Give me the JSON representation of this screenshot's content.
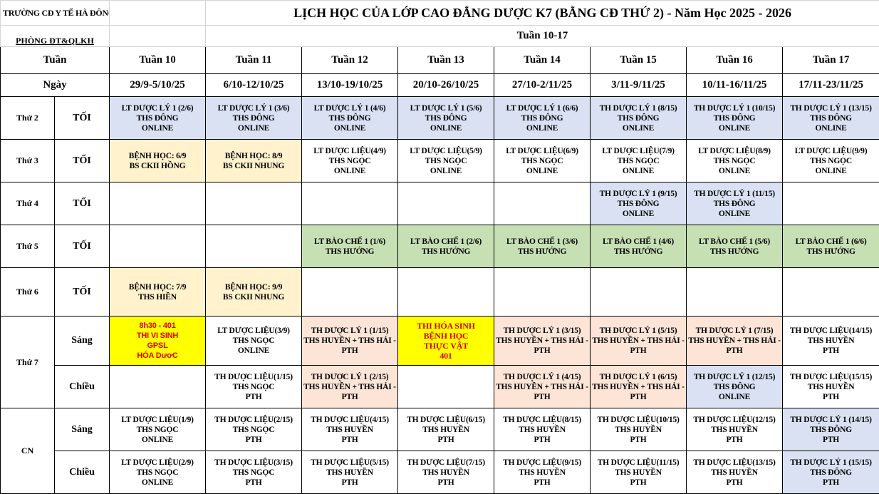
{
  "header": {
    "school": "TRƯỜNG CĐ  Y TẾ HÀ ĐÔNG",
    "title": "LỊCH HỌC CỦA LỚP CAO ĐẲNG DƯỢC K7 (BẰNG CĐ THỨ 2) - Năm Học 2025 - 2026",
    "department": "PHÒNG ĐT&QLKH",
    "week_range": "Tuần 10-17"
  },
  "columns": {
    "week_label": "Tuần",
    "date_label": "Ngày",
    "weeks": [
      "Tuần 10",
      "Tuần 11",
      "Tuần 12",
      "Tuần 13",
      "Tuần 14",
      "Tuần 15",
      "Tuần 16",
      "Tuần 17"
    ],
    "dates": [
      "29/9-5/10/25",
      "6/10-12/10/25",
      "13/10-19/10/25",
      "20/10-26/10/25",
      "27/10-2/11/25",
      "3/11-9/11/25",
      "10/11-16/11/25",
      "17/11-23/11/25"
    ]
  },
  "colors": {
    "blue": "#d9e1f2",
    "cream": "#fff2cc",
    "green": "#c6e0b4",
    "peach": "#fce4d6",
    "exam": "#ffff00",
    "exam_text": "#e00000"
  },
  "days": [
    {
      "label": "Thứ 2",
      "sessions": [
        {
          "label": "TỐI",
          "cells": [
            {
              "lines": [
                "LT DƯỢC LÝ 1 (2/6)",
                "THS ĐÔNG",
                "ONLINE"
              ],
              "bg": "blue"
            },
            {
              "lines": [
                "LT DƯỢC LÝ 1 (3/6)",
                "THS ĐÔNG",
                "ONLINE"
              ],
              "bg": "blue"
            },
            {
              "lines": [
                "LT DƯỢC LÝ 1 (4/6)",
                "THS ĐÔNG",
                "ONLINE"
              ],
              "bg": "blue"
            },
            {
              "lines": [
                "LT DƯỢC LÝ 1 (5/6)",
                "THS ĐÔNG",
                "ONLINE"
              ],
              "bg": "blue"
            },
            {
              "lines": [
                "LT DƯỢC LÝ 1 (6/6)",
                "THS ĐÔNG",
                "ONLINE"
              ],
              "bg": "blue"
            },
            {
              "lines": [
                "TH DƯỢC LÝ 1 (8/15)",
                "THS ĐÔNG",
                "ONLINE"
              ],
              "bg": "blue"
            },
            {
              "lines": [
                "TH DƯỢC LÝ 1 (10/15)",
                "THS ĐÔNG",
                "ONLINE"
              ],
              "bg": "blue"
            },
            {
              "lines": [
                "TH DƯỢC LÝ 1 (13/15)",
                "THS ĐÔNG",
                "ONLINE"
              ],
              "bg": "blue"
            }
          ]
        }
      ]
    },
    {
      "label": "Thứ 3",
      "sessions": [
        {
          "label": "TỐI",
          "cells": [
            {
              "lines": [
                "BỆNH HỌC: 6/9",
                "BS CKII HỒNG"
              ],
              "bg": "cream"
            },
            {
              "lines": [
                "BỆNH HỌC: 8/9",
                "BS CKII NHUNG"
              ],
              "bg": "cream"
            },
            {
              "lines": [
                "LT DƯỢC LIỆU(4/9)",
                "THS NGỌC",
                "ONLINE"
              ],
              "bg": ""
            },
            {
              "lines": [
                "LT DƯỢC LIỆU(5/9)",
                "THS NGỌC",
                "ONLINE"
              ],
              "bg": ""
            },
            {
              "lines": [
                "LT DƯỢC LIỆU(6/9)",
                "THS NGỌC",
                "ONLINE"
              ],
              "bg": ""
            },
            {
              "lines": [
                "LT DƯỢC LIỆU(7/9)",
                "THS NGỌC",
                "ONLINE"
              ],
              "bg": ""
            },
            {
              "lines": [
                "LT DƯỢC LIỆU(8/9)",
                "THS NGỌC",
                "ONLINE"
              ],
              "bg": ""
            },
            {
              "lines": [
                "LT DƯỢC LIỆU(9/9)",
                "THS NGỌC",
                "ONLINE"
              ],
              "bg": ""
            }
          ]
        }
      ]
    },
    {
      "label": "Thứ 4",
      "sessions": [
        {
          "label": "TỐI",
          "cells": [
            null,
            null,
            null,
            null,
            null,
            {
              "lines": [
                "TH DƯỢC LÝ 1 (9/15)",
                "THS ĐÔNG",
                "ONLINE"
              ],
              "bg": "blue"
            },
            {
              "lines": [
                "TH DƯỢC LÝ 1 (11/15)",
                "THS ĐÔNG",
                "ONLINE"
              ],
              "bg": "blue"
            },
            null
          ]
        }
      ]
    },
    {
      "label": "Thứ 5",
      "sessions": [
        {
          "label": "TỐI",
          "cells": [
            null,
            null,
            {
              "lines": [
                "LT BÀO CHẾ 1 (1/6)",
                "THS HƯỚNG"
              ],
              "bg": "green"
            },
            {
              "lines": [
                "LT BÀO CHẾ 1 (2/6)",
                "THS HƯỚNG"
              ],
              "bg": "green"
            },
            {
              "lines": [
                "LT BÀO CHẾ 1 (3/6)",
                "THS HƯỚNG"
              ],
              "bg": "green"
            },
            {
              "lines": [
                "LT BÀO CHẾ 1 (4/6)",
                "THS HƯỚNG"
              ],
              "bg": "green"
            },
            {
              "lines": [
                "LT BÀO CHẾ 1 (5/6)",
                "THS HƯỚNG"
              ],
              "bg": "green"
            },
            {
              "lines": [
                "LT BÀO CHẾ 1 (6/6)",
                "THS HƯỚNG"
              ],
              "bg": "green"
            }
          ]
        }
      ]
    },
    {
      "label": "Thứ 6",
      "sessions": [
        {
          "label": "TỐI",
          "cells": [
            {
              "lines": [
                "BỆNH HỌC: 7/9",
                "THS HIỀN"
              ],
              "bg": "cream"
            },
            {
              "lines": [
                "BỆNH HỌC: 9/9",
                "BS CKII NHUNG"
              ],
              "bg": "cream"
            },
            null,
            null,
            null,
            null,
            null,
            null
          ]
        }
      ]
    },
    {
      "label": "Thứ 7",
      "sessions": [
        {
          "label": "Sáng",
          "cells": [
            {
              "lines": [
                "8h30 - 401",
                "THI VI SINH",
                "GPSL",
                "HÓA DươC"
              ],
              "bg": "yellow"
            },
            {
              "lines": [
                "LT DƯỢC LIỆU(3/9)",
                "THS NGỌC",
                "ONLINE"
              ],
              "bg": ""
            },
            {
              "lines": [
                "TH DƯỢC LÝ 1 (1/15)",
                "THS HUYỀN + THS HẢI -",
                "PTH"
              ],
              "bg": "peach"
            },
            {
              "lines": [
                "THI HÓA SINH",
                "BỆNH HỌC",
                "THỰC VẬT",
                "401"
              ],
              "bg": "yellow serif"
            },
            {
              "lines": [
                "TH DƯỢC LÝ 1 (3/15)",
                "THS HUYỀN + THS HẢI -",
                "PTH"
              ],
              "bg": "peach"
            },
            {
              "lines": [
                "TH DƯỢC LÝ 1 (5/15)",
                "THS HUYỀN + THS HẢI -",
                "PTH"
              ],
              "bg": "peach"
            },
            {
              "lines": [
                "TH DƯỢC LÝ 1 (7/15)",
                "THS HUYỀN + THS HẢI -",
                "PTH"
              ],
              "bg": "peach"
            },
            {
              "lines": [
                "TH DƯỢC LIỆU(14/15)",
                "THS HUYỀN",
                "PTH"
              ],
              "bg": ""
            }
          ]
        },
        {
          "label": "Chiều",
          "cells": [
            null,
            {
              "lines": [
                "TH DƯỢC LIỆU(1/15)",
                "THS NGỌC",
                "PTH"
              ],
              "bg": ""
            },
            {
              "lines": [
                "TH DƯỢC LÝ 1 (2/15)",
                "THS HUYỀN + THS HẢI -",
                "PTH"
              ],
              "bg": "peach"
            },
            null,
            {
              "lines": [
                "TH DƯỢC LÝ 1 (4/15)",
                "THS HUYỀN + THS HẢI -",
                "PTH"
              ],
              "bg": "peach"
            },
            {
              "lines": [
                "TH DƯỢC LÝ 1 (6/15)",
                "THS HUYỀN + THS HẢI -",
                "PTH"
              ],
              "bg": "peach"
            },
            {
              "lines": [
                "TH DƯỢC LÝ 1 (12/15)",
                "THS ĐÔNG",
                "ONLINE"
              ],
              "bg": "blue"
            },
            {
              "lines": [
                "TH DƯỢC LIỆU(15/15)",
                "THS HUYỀN",
                "PTH"
              ],
              "bg": ""
            }
          ]
        }
      ]
    },
    {
      "label": "CN",
      "sessions": [
        {
          "label": "Sáng",
          "cells": [
            {
              "lines": [
                "LT DƯỢC LIỆU(1/9)",
                "THS NGỌC",
                "ONLINE"
              ],
              "bg": ""
            },
            {
              "lines": [
                "TH DƯỢC LIỆU(2/15)",
                "THS NGỌC",
                "PTH"
              ],
              "bg": ""
            },
            {
              "lines": [
                "TH DƯỢC LIỆU(4/15)",
                "THS HUYỀN",
                "PTH"
              ],
              "bg": ""
            },
            {
              "lines": [
                "TH DƯỢC LIỆU(6/15)",
                "THS HUYỀN",
                "PTH"
              ],
              "bg": ""
            },
            {
              "lines": [
                "TH DƯỢC LIỆU(8/15)",
                "THS HUYỀN",
                "PTH"
              ],
              "bg": ""
            },
            {
              "lines": [
                "TH DƯỢC LIỆU(10/15)",
                "THS HUYỀN",
                "PTH"
              ],
              "bg": ""
            },
            {
              "lines": [
                "TH DƯỢC LIỆU(12/15)",
                "THS HUYỀN",
                "PTH"
              ],
              "bg": ""
            },
            {
              "lines": [
                "TH DƯỢC LÝ 1 (14/15)",
                "THS ĐÔNG",
                "PTH"
              ],
              "bg": "blue"
            }
          ]
        },
        {
          "label": "Chiều",
          "cells": [
            {
              "lines": [
                "LT DƯỢC LIỆU(2/9)",
                "THS NGỌC",
                "ONLINE"
              ],
              "bg": ""
            },
            {
              "lines": [
                "TH DƯỢC LIỆU(3/15)",
                "THS NGỌC",
                "PTH"
              ],
              "bg": ""
            },
            {
              "lines": [
                "TH DƯỢC LIỆU(5/15)",
                "THS HUYỀN",
                "PTH"
              ],
              "bg": ""
            },
            {
              "lines": [
                "TH DƯỢC LIỆU(7/15)",
                "THS HUYỀN",
                "PTH"
              ],
              "bg": ""
            },
            {
              "lines": [
                "TH DƯỢC LIỆU(9/15)",
                "THS HUYỀN",
                "PTH"
              ],
              "bg": ""
            },
            {
              "lines": [
                "TH DƯỢC LIỆU(11/15)",
                "THS HUYỀN",
                "PTH"
              ],
              "bg": ""
            },
            {
              "lines": [
                "TH DƯỢC LIỆU(13/15)",
                "THS HUYỀN",
                "PTH"
              ],
              "bg": ""
            },
            {
              "lines": [
                "TH DƯỢC LÝ 1 (15/15)",
                "THS ĐÔNG",
                "PTH"
              ],
              "bg": "blue"
            }
          ]
        }
      ]
    }
  ]
}
